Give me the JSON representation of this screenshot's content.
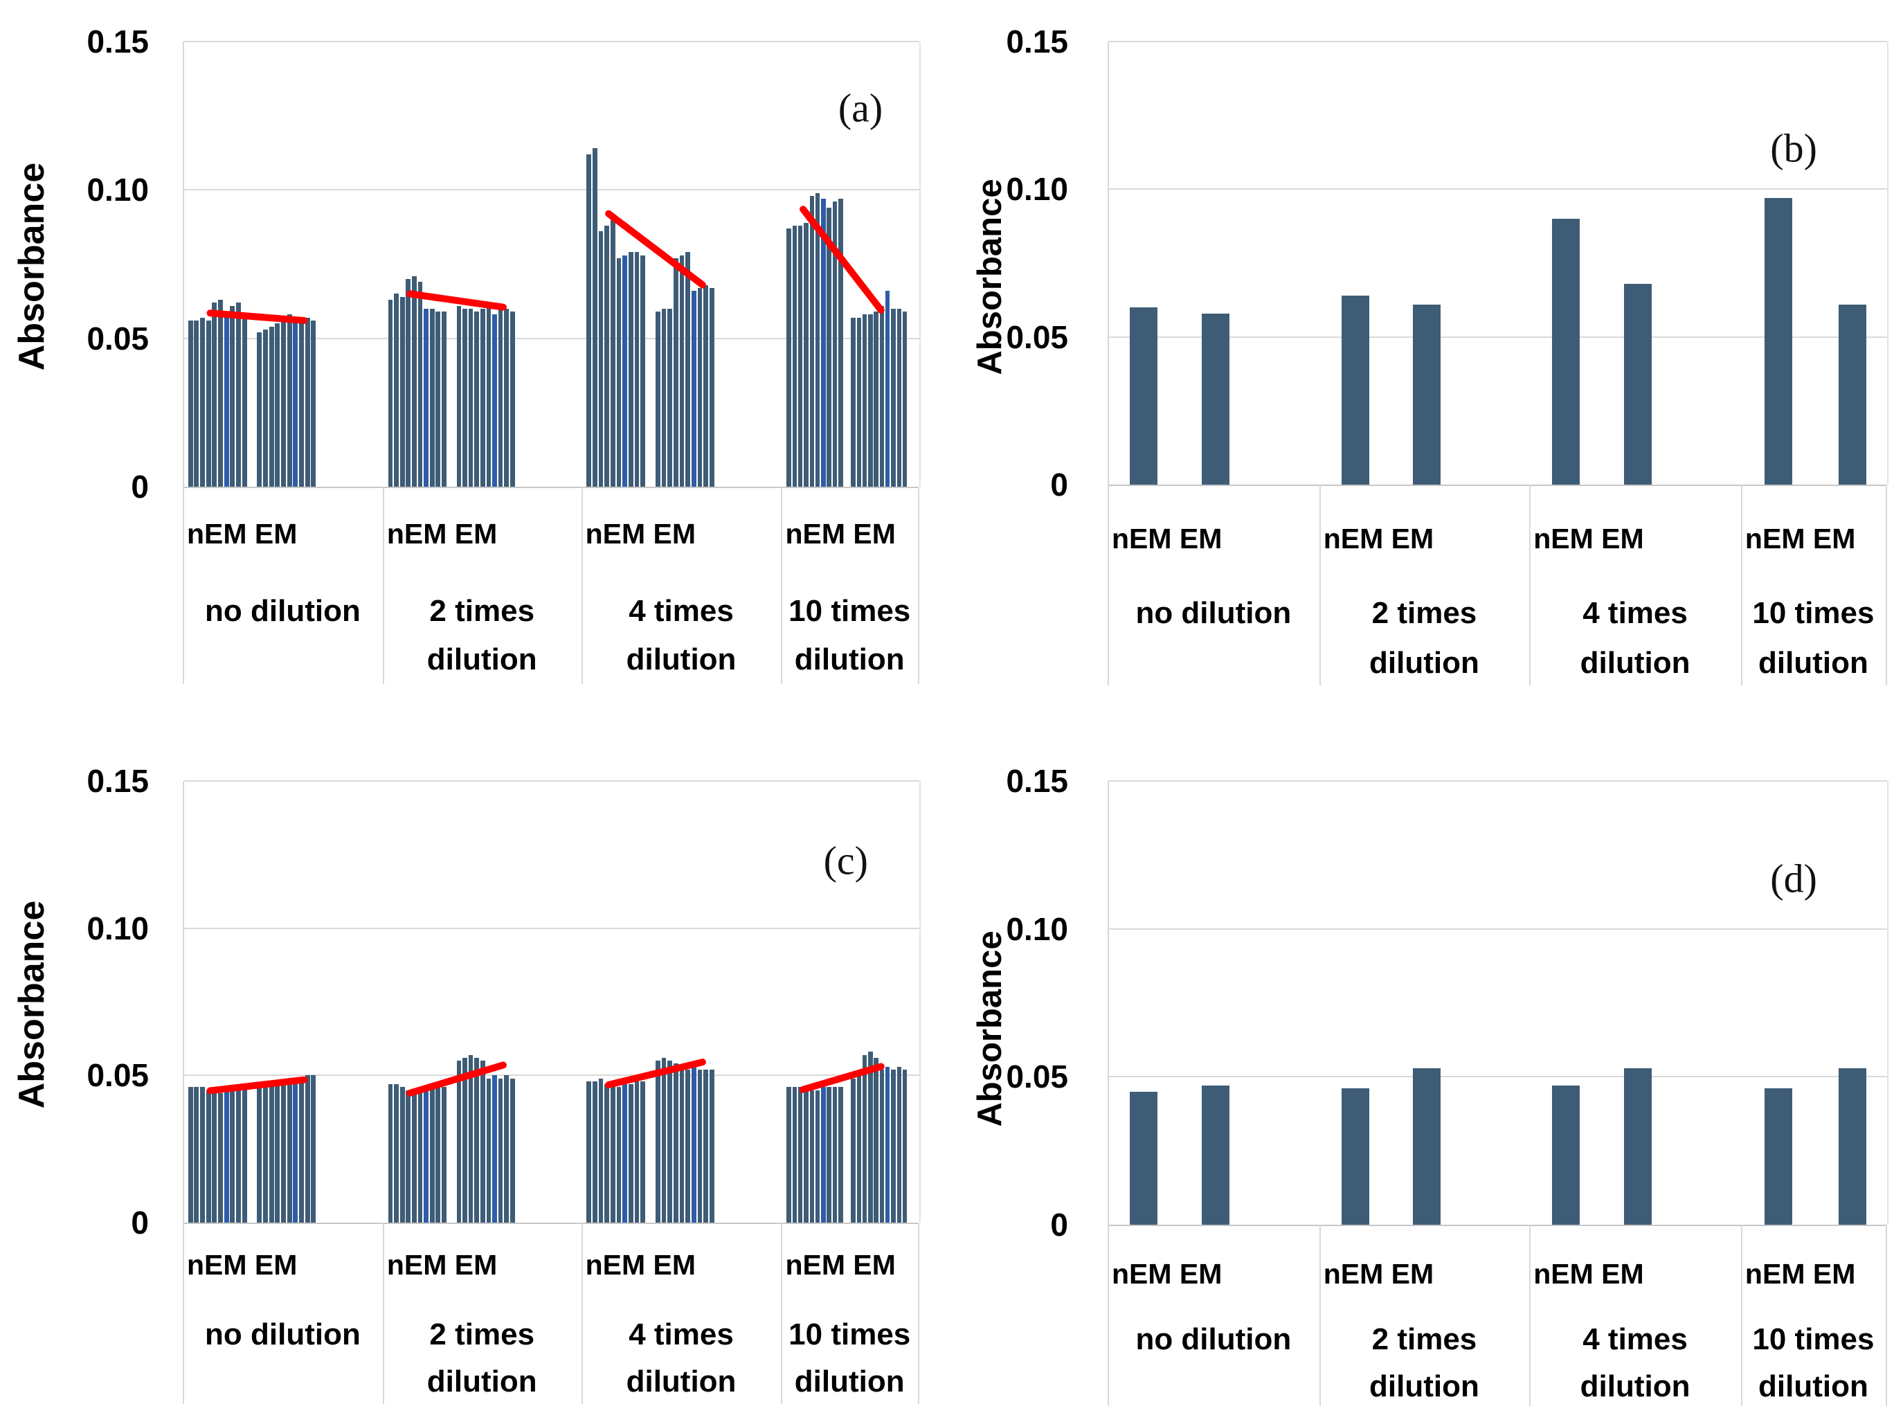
{
  "figure": {
    "ylabel": "Absorbance",
    "yticks": [
      {
        "value": 0.15,
        "label": "0.15"
      },
      {
        "value": 0.1,
        "label": "0.10"
      },
      {
        "value": 0.05,
        "label": "0.05"
      },
      {
        "value": 0.0,
        "label": "0"
      }
    ],
    "series_row_label": "nEM EM",
    "category_labels": [
      [
        "no dilution"
      ],
      [
        "2 times",
        "dilution"
      ],
      [
        "4 times",
        "dilution"
      ],
      [
        "10 times",
        "dilution"
      ]
    ],
    "panel_letters": [
      "(a)",
      "(b)",
      "(c)",
      "(d)"
    ],
    "colors": {
      "bar": "#3e5c76",
      "bar_accent": "#2e5da8",
      "trend": "#ff0000",
      "grid": "#d9d9d9",
      "axis": "#c6c6c6",
      "text": "#000000",
      "background": "#ffffff"
    }
  },
  "chart_data": [
    {
      "panel": "(a)",
      "type": "bar",
      "variant": "replicates",
      "title": "",
      "xlabel": "",
      "ylabel": "Absorbance",
      "ylim": [
        0,
        0.15
      ],
      "yticks": [
        0,
        0.05,
        0.1,
        0.15
      ],
      "grid": "horizontal",
      "legend": "none",
      "categories": [
        "no dilution",
        "2 times dilution",
        "4 times dilution",
        "10 times dilution"
      ],
      "sub_categories": [
        "nEM",
        "EM"
      ],
      "series": [
        {
          "name": "nEM",
          "replicates": [
            [
              0.056,
              0.056,
              0.057,
              0.056,
              0.062,
              0.063,
              0.058,
              0.061,
              0.062,
              0.057
            ],
            [
              0.063,
              0.065,
              0.064,
              0.07,
              0.071,
              0.069,
              0.06,
              0.06,
              0.059,
              0.059
            ],
            [
              0.112,
              0.114,
              0.086,
              0.088,
              0.09,
              0.077,
              0.078,
              0.079,
              0.079,
              0.078
            ],
            [
              0.087,
              0.088,
              0.088,
              0.089,
              0.098,
              0.099,
              0.097,
              0.094,
              0.096,
              0.097
            ]
          ]
        },
        {
          "name": "EM",
          "replicates": [
            [
              0.052,
              0.053,
              0.054,
              0.055,
              0.057,
              0.058,
              0.056,
              0.057,
              0.057,
              0.056
            ],
            [
              0.061,
              0.06,
              0.06,
              0.059,
              0.06,
              0.062,
              0.058,
              0.06,
              0.06,
              0.059
            ],
            [
              0.059,
              0.06,
              0.06,
              0.077,
              0.078,
              0.079,
              0.066,
              0.067,
              0.068,
              0.067
            ],
            [
              0.057,
              0.057,
              0.058,
              0.058,
              0.059,
              0.061,
              0.066,
              0.06,
              0.06,
              0.059
            ]
          ]
        }
      ],
      "trendlines": [
        {
          "category": "no dilution",
          "start": 0.0585,
          "end": 0.056
        },
        {
          "category": "2 times dilution",
          "start": 0.065,
          "end": 0.0605
        },
        {
          "category": "4 times dilution",
          "start": 0.092,
          "end": 0.068
        },
        {
          "category": "10 times dilution",
          "start": 0.0935,
          "end": 0.0595
        }
      ]
    },
    {
      "panel": "(b)",
      "type": "bar",
      "variant": "means",
      "title": "",
      "xlabel": "",
      "ylabel": "Absorbance",
      "ylim": [
        0,
        0.15
      ],
      "yticks": [
        0,
        0.05,
        0.1,
        0.15
      ],
      "grid": "horizontal",
      "legend": "none",
      "categories": [
        "no dilution",
        "2 times dilution",
        "4 times dilution",
        "10 times dilution"
      ],
      "sub_categories": [
        "nEM",
        "EM"
      ],
      "series": [
        {
          "name": "nEM",
          "values": [
            0.06,
            0.064,
            0.09,
            0.097
          ]
        },
        {
          "name": "EM",
          "values": [
            0.058,
            0.061,
            0.068,
            0.061
          ]
        }
      ],
      "trendlines": []
    },
    {
      "panel": "(c)",
      "type": "bar",
      "variant": "replicates",
      "title": "",
      "xlabel": "",
      "ylabel": "Absorbance",
      "ylim": [
        0,
        0.15
      ],
      "yticks": [
        0,
        0.05,
        0.1,
        0.15
      ],
      "grid": "horizontal",
      "legend": "none",
      "categories": [
        "no dilution",
        "2 times dilution",
        "4 times dilution",
        "10 times dilution"
      ],
      "sub_categories": [
        "nEM",
        "EM"
      ],
      "series": [
        {
          "name": "nEM",
          "replicates": [
            [
              0.046,
              0.046,
              0.046,
              0.045,
              0.045,
              0.044,
              0.045,
              0.046,
              0.046,
              0.046
            ],
            [
              0.047,
              0.047,
              0.046,
              0.045,
              0.044,
              0.045,
              0.046,
              0.046,
              0.046,
              0.046
            ],
            [
              0.048,
              0.048,
              0.049,
              0.047,
              0.046,
              0.046,
              0.047,
              0.047,
              0.048,
              0.048
            ],
            [
              0.046,
              0.046,
              0.046,
              0.045,
              0.045,
              0.045,
              0.046,
              0.046,
              0.046,
              0.046
            ]
          ]
        },
        {
          "name": "EM",
          "replicates": [
            [
              0.046,
              0.046,
              0.047,
              0.047,
              0.048,
              0.048,
              0.049,
              0.049,
              0.05,
              0.05
            ],
            [
              0.055,
              0.056,
              0.057,
              0.056,
              0.055,
              0.049,
              0.05,
              0.049,
              0.05,
              0.049
            ],
            [
              0.055,
              0.056,
              0.055,
              0.054,
              0.053,
              0.052,
              0.053,
              0.052,
              0.052,
              0.052
            ],
            [
              0.049,
              0.05,
              0.057,
              0.058,
              0.056,
              0.052,
              0.053,
              0.052,
              0.053,
              0.052
            ]
          ]
        }
      ],
      "trendlines": [
        {
          "category": "no dilution",
          "start": 0.0448,
          "end": 0.0485
        },
        {
          "category": "2 times dilution",
          "start": 0.044,
          "end": 0.0535
        },
        {
          "category": "4 times dilution",
          "start": 0.0468,
          "end": 0.0545
        },
        {
          "category": "10 times dilution",
          "start": 0.0452,
          "end": 0.053
        }
      ]
    },
    {
      "panel": "(d)",
      "type": "bar",
      "variant": "means",
      "title": "",
      "xlabel": "",
      "ylabel": "Absorbance",
      "ylim": [
        0,
        0.15
      ],
      "yticks": [
        0,
        0.05,
        0.1,
        0.15
      ],
      "grid": "horizontal",
      "legend": "none",
      "categories": [
        "no dilution",
        "2 times dilution",
        "4 times dilution",
        "10 times dilution"
      ],
      "sub_categories": [
        "nEM",
        "EM"
      ],
      "series": [
        {
          "name": "nEM",
          "values": [
            0.045,
            0.046,
            0.047,
            0.046
          ]
        },
        {
          "name": "EM",
          "values": [
            0.047,
            0.053,
            0.053,
            0.053
          ]
        }
      ],
      "trendlines": []
    }
  ]
}
